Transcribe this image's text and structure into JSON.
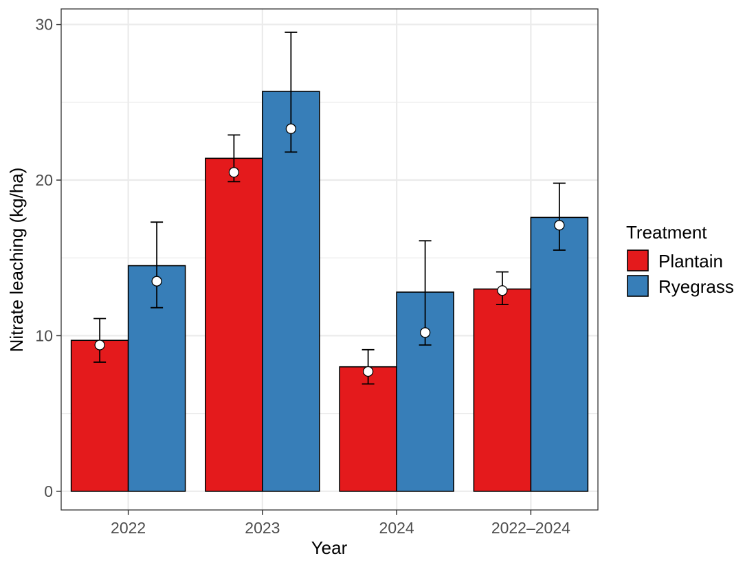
{
  "chart_data": {
    "type": "bar",
    "xlabel": "Year",
    "ylabel": "Nitrate leaching (kg/ha)",
    "categories": [
      "2022",
      "2023",
      "2024",
      "2022–2024"
    ],
    "ylim": [
      -1.2,
      31
    ],
    "yticks": [
      0,
      10,
      20,
      30
    ],
    "grid": true,
    "legend": {
      "title": "Treatment",
      "position": "right"
    },
    "series": [
      {
        "name": "Plantain",
        "color": "#e41a1c",
        "values": [
          9.7,
          21.4,
          8.0,
          13.0
        ],
        "points": [
          9.4,
          20.5,
          7.7,
          12.9
        ],
        "error_low": [
          8.3,
          19.9,
          6.9,
          12.0
        ],
        "error_high": [
          11.1,
          22.9,
          9.1,
          14.1
        ]
      },
      {
        "name": "Ryegrass",
        "color": "#377eb8",
        "values": [
          14.5,
          25.7,
          12.8,
          17.6
        ],
        "points": [
          13.5,
          23.3,
          10.2,
          17.1
        ],
        "error_low": [
          11.8,
          21.8,
          9.4,
          15.5
        ],
        "error_high": [
          17.3,
          29.5,
          16.1,
          19.8
        ]
      }
    ]
  }
}
